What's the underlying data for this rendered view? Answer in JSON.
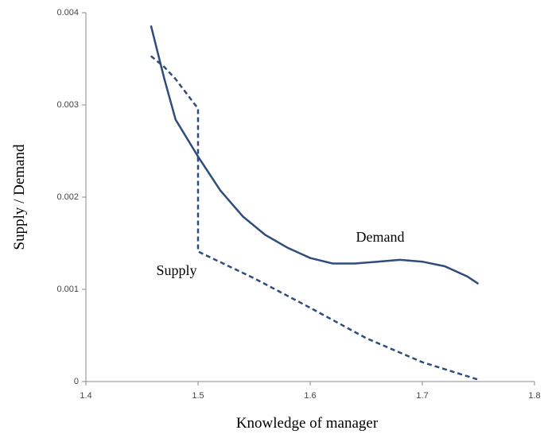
{
  "chart_data": {
    "type": "line",
    "x_label": "Knowledge of manager",
    "y_label": "Supply / Demand",
    "xlim": [
      1.4,
      1.8
    ],
    "xticks": [
      1.4,
      1.5,
      1.6,
      1.7,
      1.8
    ],
    "ylim": [
      0,
      0.004
    ],
    "yticks": [
      0,
      0.001,
      0.002,
      0.003,
      0.004
    ],
    "series": [
      {
        "name": "Demand",
        "color": "#2e4d7b",
        "dashed": false,
        "x": [
          1.458,
          1.47,
          1.48,
          1.5,
          1.52,
          1.54,
          1.56,
          1.58,
          1.6,
          1.62,
          1.64,
          1.66,
          1.68,
          1.7,
          1.72,
          1.74,
          1.75
        ],
        "values": [
          0.00386,
          0.00328,
          0.00284,
          0.00244,
          0.00207,
          0.00179,
          0.00159,
          0.00145,
          0.00134,
          0.00128,
          0.00128,
          0.0013,
          0.00132,
          0.0013,
          0.00125,
          0.00114,
          0.00106
        ]
      },
      {
        "name": "Supply",
        "color": "#2e4d7b",
        "dashed": true,
        "x": [
          1.458,
          1.47,
          1.48,
          1.5,
          1.5,
          1.55,
          1.6,
          1.65,
          1.7,
          1.75
        ],
        "values": [
          0.00353,
          0.00341,
          0.00328,
          0.00296,
          0.00141,
          0.00112,
          0.0008,
          0.00047,
          0.00021,
          2e-05
        ]
      }
    ]
  }
}
